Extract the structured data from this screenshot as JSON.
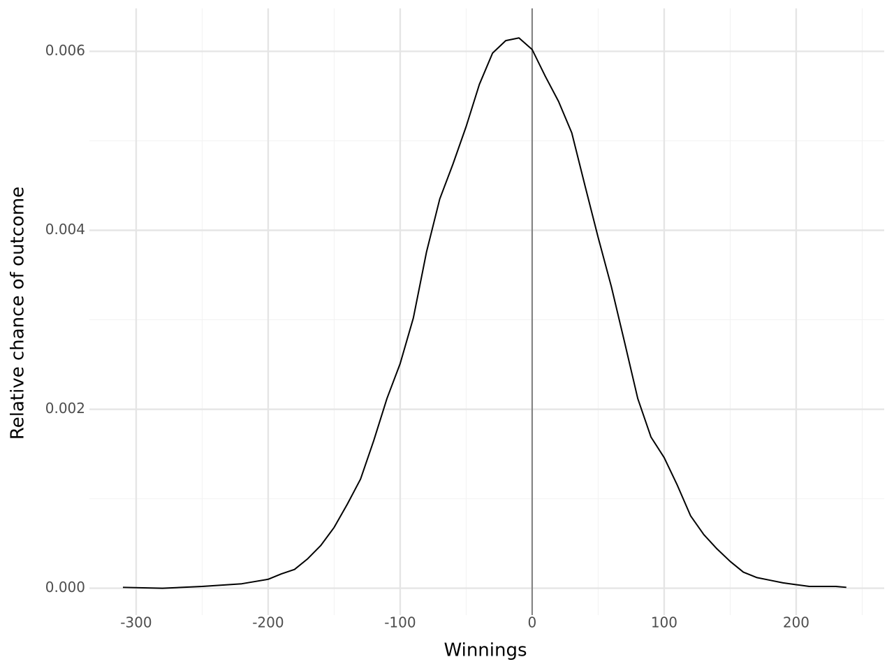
{
  "chart_data": {
    "type": "line",
    "x_label": "Winnings",
    "y_label": "Relative chance of outcome",
    "x": [
      -310,
      -280,
      -250,
      -230,
      -220,
      -200,
      -190,
      -180,
      -170,
      -160,
      -150,
      -140,
      -130,
      -120,
      -110,
      -100,
      -90,
      -80,
      -70,
      -60,
      -50,
      -40,
      -30,
      -20,
      -10,
      0,
      10,
      20,
      30,
      40,
      50,
      60,
      70,
      80,
      90,
      100,
      110,
      120,
      130,
      140,
      150,
      160,
      170,
      180,
      190,
      200,
      210,
      220,
      230,
      238
    ],
    "series": [
      {
        "color": "#000000",
        "values": [
          1e-05,
          0.0,
          2e-05,
          4e-05,
          5e-05,
          0.0001,
          0.00016,
          0.00021,
          0.00033,
          0.00048,
          0.00068,
          0.00094,
          0.00122,
          0.00165,
          0.00212,
          0.00251,
          0.00302,
          0.00376,
          0.00435,
          0.00474,
          0.00516,
          0.00563,
          0.00598,
          0.00612,
          0.00615,
          0.00602,
          0.00572,
          0.00544,
          0.00509,
          0.0045,
          0.00392,
          0.00337,
          0.00275,
          0.00212,
          0.00169,
          0.00146,
          0.00115,
          0.00081,
          0.0006,
          0.00044,
          0.0003,
          0.00018,
          0.00012,
          9e-05,
          6e-05,
          4e-05,
          2e-05,
          2e-05,
          2e-05,
          1e-05
        ]
      }
    ],
    "xlim": [
      -335.4,
      266.7
    ],
    "ylim": [
      -0.0003,
      0.00648
    ],
    "xticks": [
      -300,
      -200,
      -100,
      0,
      100,
      200
    ],
    "yticks": [
      {
        "value": 0,
        "label": "0.000"
      },
      {
        "value": 0.002,
        "label": "0.002"
      },
      {
        "value": 0.004,
        "label": "0.004"
      },
      {
        "value": 0.006,
        "label": "0.006"
      }
    ],
    "xminor": [
      -250,
      -150,
      -50,
      50,
      150,
      250
    ],
    "yminor": [
      0.001,
      0.003,
      0.005
    ],
    "grid": true,
    "vline": {
      "x": 0,
      "color": "#7f7f7f"
    }
  }
}
